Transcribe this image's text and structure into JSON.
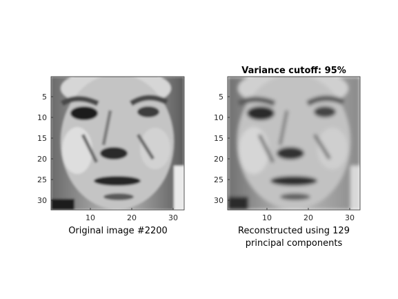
{
  "figure": {
    "left_panel": {
      "title": "",
      "caption_lines": [
        "Original image #2200"
      ],
      "x_ticks": [
        "10",
        "20",
        "30"
      ],
      "y_ticks": [
        "5",
        "10",
        "15",
        "20",
        "25",
        "30"
      ],
      "image_alt": "grayscale face image, 32x32"
    },
    "right_panel": {
      "title": "Variance cutoff: 95%",
      "caption_lines": [
        "Reconstructed using 129",
        "principal components"
      ],
      "x_ticks": [
        "10",
        "20",
        "30"
      ],
      "y_ticks": [
        "5",
        "10",
        "15",
        "20",
        "25",
        "30"
      ],
      "image_alt": "PCA-reconstructed grayscale face, 32x32"
    }
  }
}
